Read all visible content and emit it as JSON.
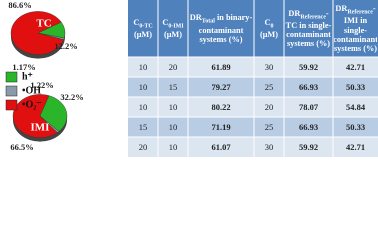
{
  "chart_data": [
    {
      "type": "pie",
      "label": "TC",
      "values": [
        86.6,
        12.2,
        1.17
      ],
      "value_labels": [
        "86.6%",
        "12.2%",
        "1.17%"
      ],
      "colors": [
        "#e01010",
        "#2bb52b",
        "#8a9aa8"
      ]
    },
    {
      "type": "pie",
      "label": "IMI",
      "values": [
        66.5,
        32.2,
        1.22
      ],
      "value_labels": [
        "66.5%",
        "32.2%",
        "1.22%"
      ],
      "colors": [
        "#e01010",
        "#2bb52b",
        "#8a9aa8"
      ]
    }
  ],
  "legend": {
    "labels": [
      "•O₂⁻",
      "h⁺",
      "•OH"
    ],
    "colors": [
      "#e01010",
      "#2bb52b",
      "#8a9aa8"
    ]
  },
  "table": {
    "header": [
      {
        "base": "C",
        "sub": "0-TC",
        "tail": " (μM)"
      },
      {
        "base": "C",
        "sub": "0-IMI",
        "tail": " (μM)"
      },
      {
        "base": "DR",
        "sub": "Total",
        "tail": " in binary-contaminant systems (%)"
      },
      {
        "base": "C",
        "sub": "0",
        "tail": " (μM)"
      },
      {
        "base": "DR",
        "sub": "Reference",
        "tail": "-TC in single-contaminant systems (%)"
      },
      {
        "base": "DR",
        "sub": "Reference",
        "tail": "-IMI in single-contaminant systems (%)"
      }
    ],
    "rows": [
      [
        10,
        20,
        61.89,
        30,
        59.92,
        42.71
      ],
      [
        10,
        15,
        79.27,
        25,
        66.93,
        50.33
      ],
      [
        10,
        10,
        80.22,
        20,
        78.07,
        54.84
      ],
      [
        15,
        10,
        71.19,
        25,
        66.93,
        50.33
      ],
      [
        20,
        10,
        61.07,
        30,
        59.92,
        42.71
      ]
    ]
  }
}
